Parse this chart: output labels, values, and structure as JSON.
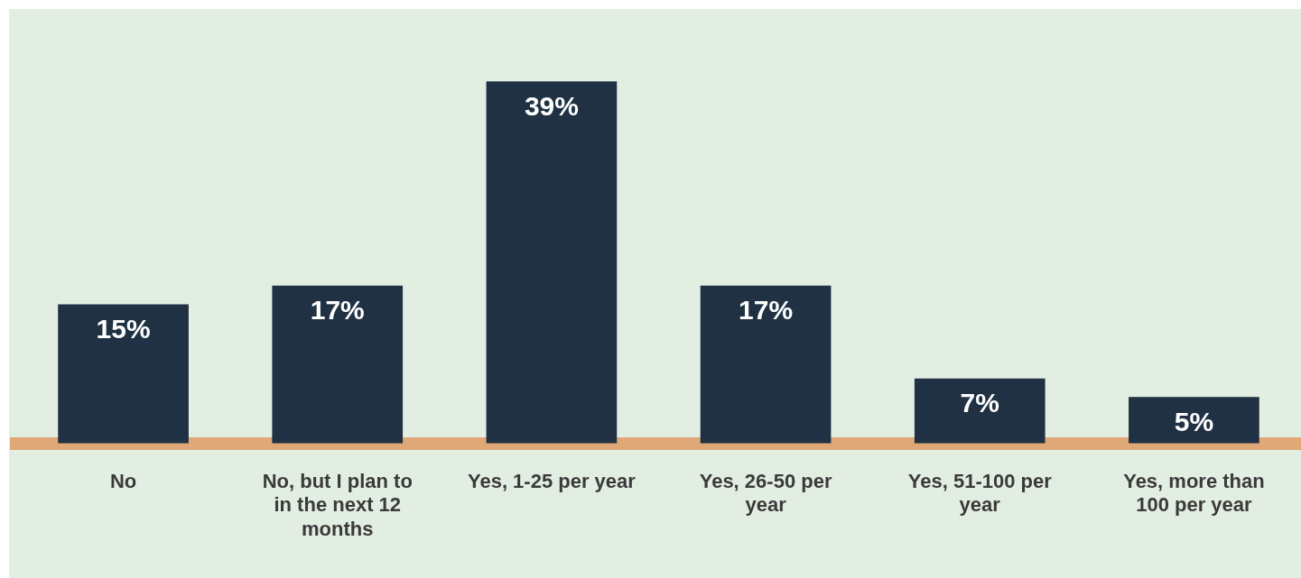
{
  "chart_data": {
    "type": "bar",
    "categories": [
      "No",
      "No, but I plan to in the next 12 months",
      "Yes, 1-25 per year",
      "Yes, 26-50 per year",
      "Yes, 51-100 per year",
      "Yes, more than 100 per year"
    ],
    "values": [
      15,
      17,
      39,
      17,
      7,
      5
    ],
    "color": "#1f3142",
    "data_labels": true,
    "value_labels": [
      "15%",
      "17%",
      "39%",
      "17%",
      "7%",
      "5%"
    ],
    "relative": false,
    "grid": false,
    "legend": false
  }
}
